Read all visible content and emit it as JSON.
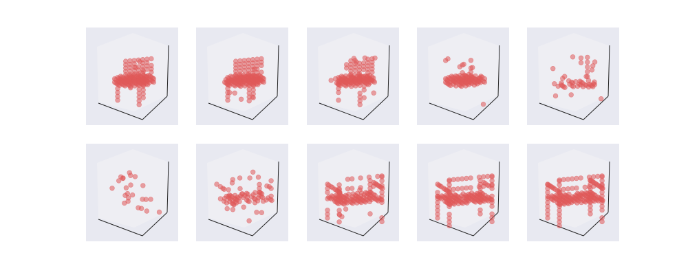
{
  "chart_data": {
    "type": "scatter",
    "subtype": "3d-voxel-grid",
    "layout": {
      "rows": 2,
      "cols": 5
    },
    "marker_color": "#e05a5a",
    "pane_color": "#e8e9f1",
    "axes": {
      "ticks": "none",
      "grid": false,
      "xlabel": "",
      "ylabel": "",
      "zlabel": ""
    },
    "panels": [
      {
        "index": 1,
        "shape": "blob",
        "legs": true,
        "back": "round",
        "density": 0.9,
        "noise": 0.03
      },
      {
        "index": 2,
        "shape": "blob",
        "legs": true,
        "back": "round",
        "density": 0.88,
        "noise": 0.04
      },
      {
        "index": 3,
        "shape": "blob",
        "legs": true,
        "back": "round",
        "density": 0.8,
        "noise": 0.06
      },
      {
        "index": 4,
        "shape": "disc",
        "legs": false,
        "back": "posts",
        "density": 0.7,
        "noise": 0.08
      },
      {
        "index": 5,
        "shape": "sparse-seat",
        "legs": false,
        "back": "posts",
        "density": 0.35,
        "noise": 0.12
      },
      {
        "index": 6,
        "shape": "scatter",
        "legs": false,
        "back": "none",
        "density": 0.1,
        "noise": 0.2
      },
      {
        "index": 7,
        "shape": "sparse-frame",
        "legs": false,
        "back": "frame",
        "density": 0.35,
        "noise": 0.12
      },
      {
        "index": 8,
        "shape": "frame",
        "legs": true,
        "back": "frame",
        "density": 0.7,
        "noise": 0.06
      },
      {
        "index": 9,
        "shape": "chair",
        "legs": true,
        "back": "frame",
        "density": 0.88,
        "noise": 0.02
      },
      {
        "index": 10,
        "shape": "chair",
        "legs": true,
        "back": "frame",
        "density": 0.92,
        "noise": 0.01
      }
    ]
  }
}
